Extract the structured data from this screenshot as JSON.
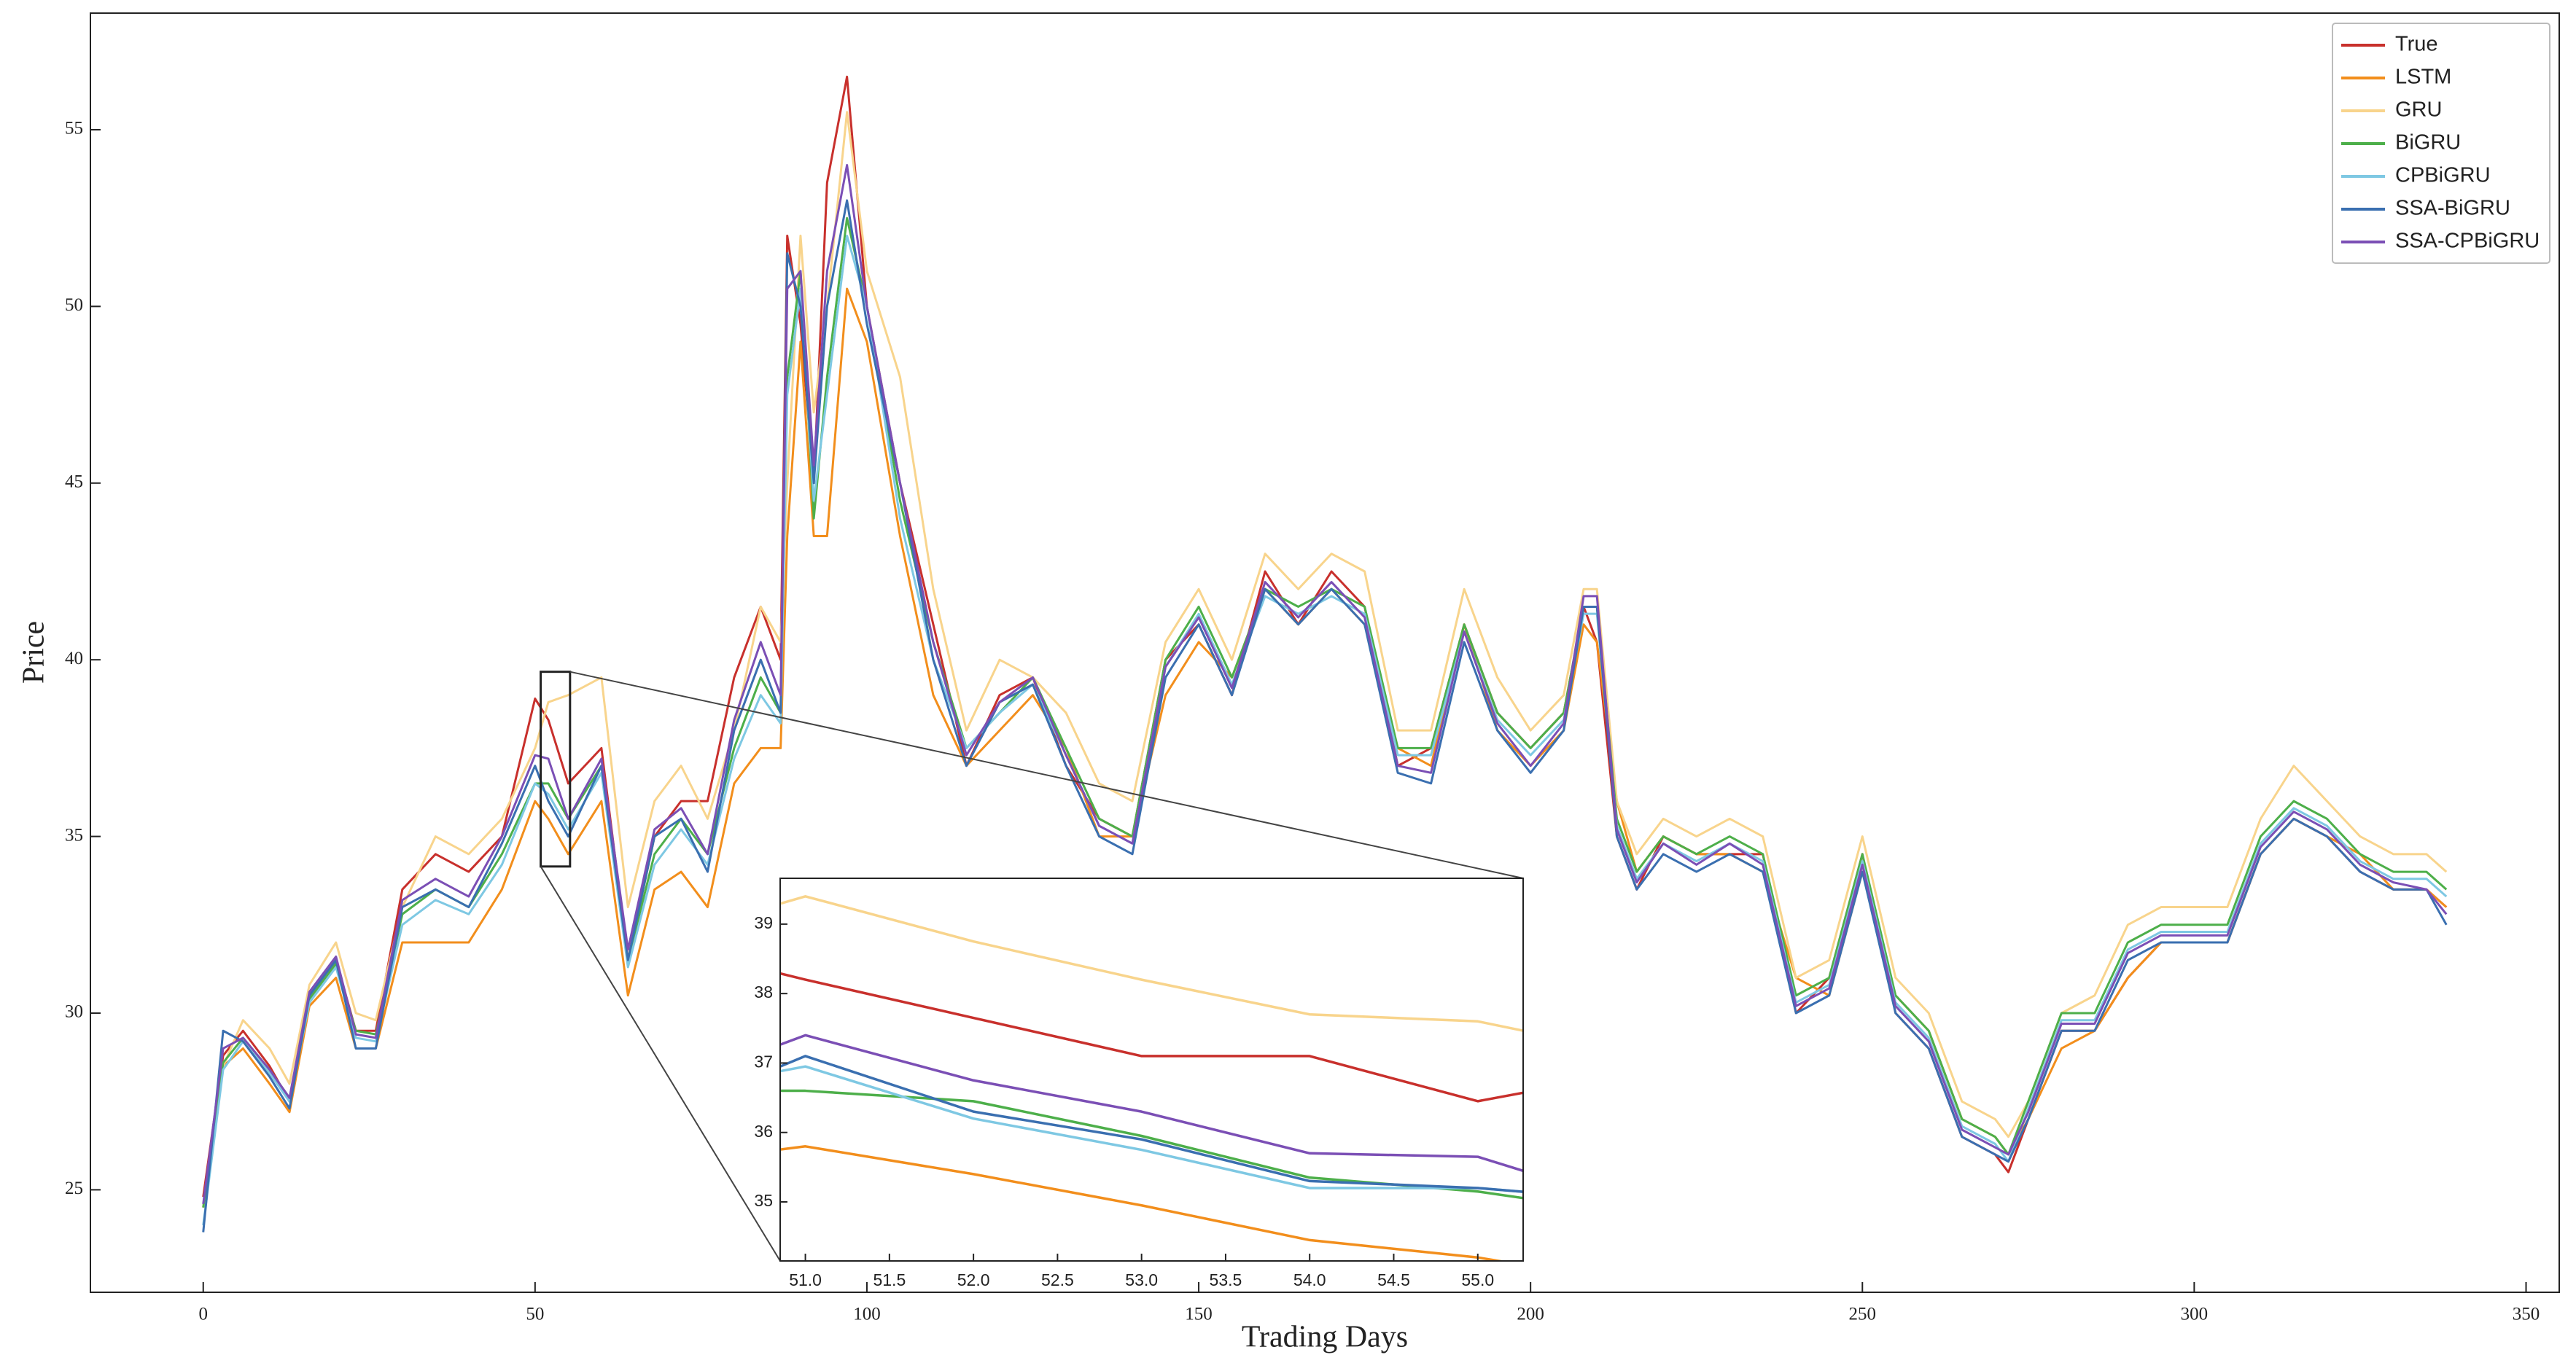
{
  "chart_data": [
    {
      "type": "line",
      "xlabel": "Trading Days",
      "ylabel": "Price",
      "legend": "upper right",
      "xlim": [
        -17,
        355
      ],
      "ylim": [
        22.1,
        58.3
      ],
      "xticks": [
        0,
        50,
        100,
        150,
        200,
        250,
        300,
        350
      ],
      "yticks": [
        25,
        30,
        35,
        40,
        45,
        50,
        55
      ],
      "x": [
        0,
        3,
        6,
        10,
        13,
        16,
        20,
        23,
        26,
        30,
        35,
        40,
        45,
        50,
        52,
        55,
        60,
        64,
        68,
        72,
        76,
        80,
        84,
        87,
        88,
        90,
        92,
        94,
        97,
        100,
        105,
        110,
        115,
        120,
        125,
        130,
        135,
        140,
        145,
        150,
        155,
        160,
        165,
        170,
        175,
        180,
        185,
        190,
        195,
        200,
        205,
        208,
        210,
        213,
        216,
        220,
        225,
        230,
        235,
        240,
        245,
        250,
        255,
        260,
        265,
        270,
        272,
        275,
        280,
        285,
        290,
        295,
        300,
        305,
        310,
        315,
        320,
        325,
        330,
        335,
        338
      ],
      "series": [
        {
          "name": "True",
          "color": "#c8302c",
          "values": [
            24.8,
            28.8,
            29.5,
            28.5,
            27.5,
            30.5,
            31.5,
            29.5,
            29.5,
            33.5,
            34.5,
            34,
            35,
            38.9,
            38.3,
            36.5,
            37.5,
            31.5,
            35,
            36,
            36,
            39.5,
            41.5,
            40,
            52,
            49.5,
            45,
            53.5,
            56.5,
            50,
            45,
            41,
            37,
            39,
            39.5,
            37,
            35.5,
            35,
            40,
            41,
            39,
            42.5,
            41,
            42.5,
            41.5,
            37,
            37.5,
            41,
            38.5,
            37.5,
            38.5,
            41.5,
            40.5,
            35,
            33.5,
            35,
            34.5,
            34.5,
            34.5,
            30,
            31,
            34.5,
            30,
            29,
            26.5,
            26,
            25.5,
            27,
            29.5,
            29.5,
            31,
            32,
            32,
            32,
            34.5,
            35.5,
            35,
            34,
            33.5,
            33.5,
            33
          ]
        },
        {
          "name": "LSTM",
          "color": "#f28e1c",
          "values": [
            24.5,
            28.5,
            29,
            28,
            27.2,
            30.2,
            31,
            29,
            29,
            32,
            32,
            32,
            33.5,
            36,
            35.5,
            34.5,
            36,
            30.5,
            33.5,
            34,
            33,
            36.5,
            37.5,
            37.5,
            43.5,
            49,
            43.5,
            43.5,
            50.5,
            49,
            43.5,
            39,
            37,
            38,
            39,
            37.5,
            35,
            35,
            39,
            40.5,
            39.5,
            42,
            41,
            42,
            41,
            37.5,
            37,
            41,
            38,
            37,
            38,
            41,
            40.5,
            36,
            34,
            35,
            34.5,
            34.5,
            34,
            31,
            30.5,
            34,
            30.5,
            29.5,
            27,
            26.5,
            26,
            27,
            29,
            29.5,
            31,
            32,
            32,
            32,
            34.5,
            35.5,
            35,
            34.5,
            33.5,
            33.5,
            33
          ]
        },
        {
          "name": "GRU",
          "color": "#f8d48c",
          "values": [
            24.5,
            28.5,
            29.8,
            29,
            28,
            30.8,
            32,
            30,
            29.8,
            33,
            35,
            34.5,
            35.5,
            37.5,
            38.8,
            39,
            39.5,
            33,
            36,
            37,
            35.5,
            38,
            41.5,
            40.5,
            45,
            52,
            47,
            50,
            55.5,
            51,
            48,
            42,
            38,
            40,
            39.5,
            38.5,
            36.5,
            36,
            40.5,
            42,
            40,
            43,
            42,
            43,
            42.5,
            38,
            38,
            42,
            39.5,
            38,
            39,
            42,
            42,
            36,
            34.5,
            35.5,
            35,
            35.5,
            35,
            31,
            31.5,
            35,
            31,
            30,
            27.5,
            27,
            26.5,
            27.5,
            30,
            30.5,
            32.5,
            33,
            33,
            33,
            35.5,
            37,
            36,
            35,
            34.5,
            34.5,
            34
          ]
        },
        {
          "name": "BiGRU",
          "color": "#4daf4a",
          "values": [
            24.5,
            28.6,
            29.3,
            28.4,
            27.6,
            30.4,
            31.4,
            29.5,
            29.4,
            32.8,
            33.5,
            33,
            34.5,
            36.5,
            36.5,
            35.5,
            37,
            31.5,
            34.5,
            35.5,
            34.5,
            37.5,
            39.5,
            38.5,
            48,
            51,
            44,
            48,
            52.5,
            50,
            44.5,
            40.5,
            37.5,
            38.5,
            39.5,
            37.5,
            35.5,
            35,
            40,
            41.5,
            39.5,
            42,
            41.5,
            42,
            41.5,
            37.5,
            37.5,
            41,
            38.5,
            37.5,
            38.5,
            41.5,
            41.5,
            35.5,
            34,
            35,
            34.5,
            35,
            34.5,
            30.5,
            31,
            34.5,
            30.5,
            29.5,
            27,
            26.5,
            26,
            27.5,
            30,
            30,
            32,
            32.5,
            32.5,
            32.5,
            35,
            36,
            35.5,
            34.5,
            34,
            34,
            33.5
          ]
        },
        {
          "name": "CPBiGRU",
          "color": "#7ec8e3",
          "values": [
            24,
            28.4,
            29.2,
            28.3,
            27.5,
            30.3,
            31.3,
            29.3,
            29.2,
            32.5,
            33.2,
            32.8,
            34.2,
            36.5,
            36.2,
            35.2,
            36.8,
            31.3,
            34.2,
            35.2,
            34.2,
            37.2,
            39,
            38.2,
            47.5,
            50.5,
            44.5,
            47.5,
            52,
            50,
            44,
            40,
            37.5,
            38.5,
            39.3,
            37.3,
            35.3,
            34.8,
            39.8,
            41.3,
            39.3,
            41.8,
            41.3,
            41.8,
            41.3,
            37.3,
            37.3,
            40.8,
            38.3,
            37.3,
            38.3,
            41.3,
            41.3,
            35.3,
            33.8,
            34.8,
            34.3,
            34.8,
            34.3,
            30.3,
            30.8,
            34.3,
            30.3,
            29.3,
            26.8,
            26.3,
            25.8,
            27.3,
            29.8,
            29.8,
            31.8,
            32.3,
            32.3,
            32.3,
            34.8,
            35.8,
            35.3,
            34.3,
            33.8,
            33.8,
            33.3
          ]
        },
        {
          "name": "SSA-BiGRU",
          "color": "#3a6fb0",
          "values": [
            23.8,
            29.5,
            29.2,
            28.2,
            27.3,
            30.5,
            31.5,
            29,
            29,
            33,
            33.5,
            33,
            34.8,
            37,
            36,
            35,
            37,
            31.5,
            35,
            35.5,
            34,
            38,
            40,
            38.5,
            51.5,
            50,
            45,
            50,
            53,
            49.5,
            45,
            40,
            37,
            38.8,
            39.3,
            37,
            35,
            34.5,
            39.5,
            41,
            39,
            42,
            41,
            42,
            41,
            36.8,
            36.5,
            40.5,
            38,
            36.8,
            38,
            41.5,
            41.5,
            35,
            33.5,
            34.5,
            34,
            34.5,
            34,
            30,
            30.5,
            34,
            30,
            29,
            26.5,
            26,
            25.8,
            27,
            29.5,
            29.5,
            31.5,
            32,
            32,
            32,
            34.5,
            35.5,
            35,
            34,
            33.5,
            33.5,
            32.5
          ]
        },
        {
          "name": "SSA-CPBiGRU",
          "color": "#7b4fb5",
          "values": [
            24.6,
            29,
            29.3,
            28.4,
            27.6,
            30.6,
            31.6,
            29.4,
            29.3,
            33.2,
            33.8,
            33.3,
            35,
            37.3,
            37.2,
            35.5,
            37.2,
            31.8,
            35.2,
            35.8,
            34.5,
            38.3,
            40.5,
            39,
            50.5,
            51,
            45.5,
            51,
            54,
            50,
            45,
            40.5,
            37.3,
            38.8,
            39.5,
            37.3,
            35.3,
            34.8,
            39.8,
            41.2,
            39.2,
            42.2,
            41.2,
            42.2,
            41.2,
            37,
            36.8,
            40.8,
            38.2,
            37,
            38.2,
            41.8,
            41.8,
            35.2,
            33.7,
            34.8,
            34.2,
            34.8,
            34.2,
            30.2,
            30.7,
            34.2,
            30.2,
            29.2,
            26.7,
            26.2,
            26,
            27.2,
            29.7,
            29.7,
            31.7,
            32.2,
            32.2,
            32.2,
            34.7,
            35.7,
            35.2,
            34.2,
            33.7,
            33.5,
            32.8
          ]
        }
      ]
    },
    {
      "type": "line",
      "xlim": [
        50.85,
        55.27
      ],
      "ylim": [
        34.15,
        39.66
      ],
      "xticks": [
        {
          "value": 51,
          "label": "51.0"
        },
        {
          "value": 51.5,
          "label": "51.5"
        },
        {
          "value": 52,
          "label": "52.0"
        },
        {
          "value": 52.5,
          "label": "52.5"
        },
        {
          "value": 53,
          "label": "53.0"
        },
        {
          "value": 53.5,
          "label": "53.5"
        },
        {
          "value": 54,
          "label": "54.0"
        },
        {
          "value": 54.5,
          "label": "54.5"
        },
        {
          "value": 55,
          "label": "55.0"
        }
      ],
      "yticks": [
        35,
        36,
        37,
        38,
        39
      ],
      "x": [
        50,
        51,
        52,
        53,
        54,
        55,
        56
      ],
      "series": [
        {
          "color": "#c8302c",
          "values": [
            38.8,
            38.2,
            37.65,
            37.1,
            37.1,
            36.45,
            36.9
          ]
        },
        {
          "color": "#f28e1c",
          "values": [
            35.5,
            35.8,
            35.4,
            34.95,
            34.45,
            34.2,
            33.8
          ]
        },
        {
          "color": "#f8d48c",
          "values": [
            38.7,
            39.4,
            38.75,
            38.2,
            37.7,
            37.6,
            37.1
          ]
        },
        {
          "color": "#4daf4a",
          "values": [
            36.6,
            36.6,
            36.45,
            35.95,
            35.35,
            35.15,
            34.8
          ]
        },
        {
          "color": "#7ec8e3",
          "values": [
            36.5,
            36.95,
            36.2,
            35.75,
            35.2,
            35.2,
            35.0
          ]
        },
        {
          "color": "#3a6fb0",
          "values": [
            36.1,
            37.1,
            36.3,
            35.9,
            35.3,
            35.2,
            35.0
          ]
        },
        {
          "color": "#7b4fb5",
          "values": [
            36.5,
            37.4,
            36.75,
            36.3,
            35.7,
            35.65,
            34.9
          ]
        }
      ]
    }
  ]
}
